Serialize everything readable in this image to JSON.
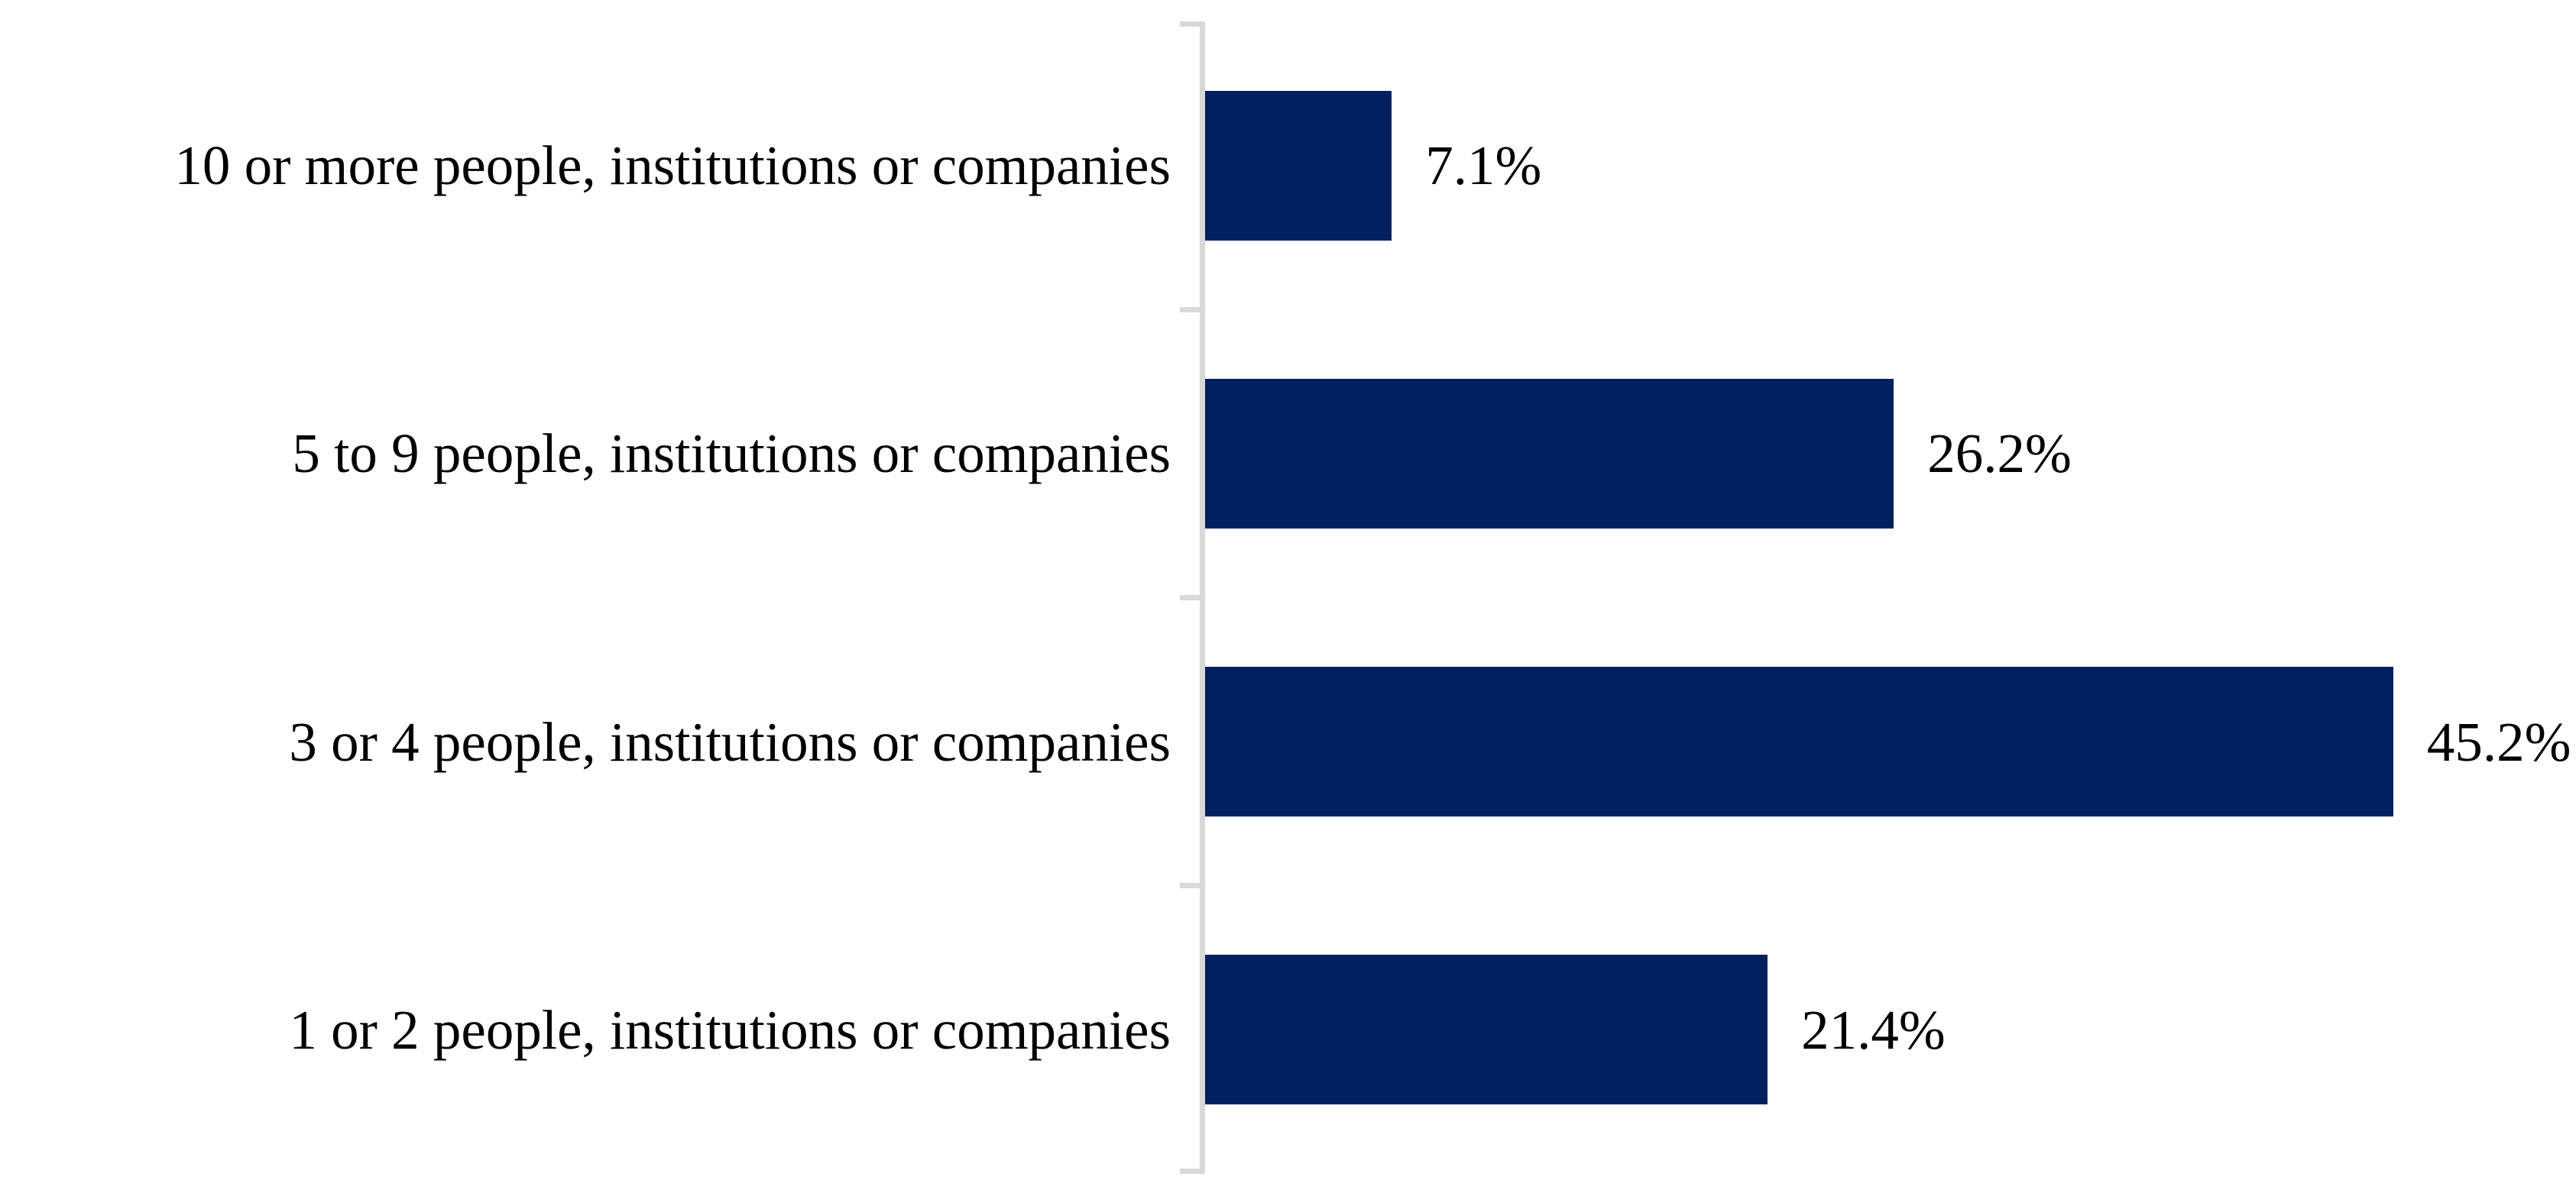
{
  "chart_data": {
    "type": "bar",
    "orientation": "horizontal",
    "title": "",
    "xlabel": "",
    "ylabel": "",
    "categories": [
      "10 or more people, institutions or companies",
      "5 to 9 people, institutions or companies",
      "3 or 4 people, institutions or companies",
      "1 or 2 people, institutions or companies"
    ],
    "values": [
      7.1,
      26.2,
      45.2,
      21.4
    ],
    "value_labels": [
      "7.1%",
      "26.2%",
      "45.2%",
      "21.4%"
    ],
    "xlim": [
      0,
      50
    ],
    "bar_color": "#002060",
    "axis_color": "#D9D9D9",
    "text_color": "#000000",
    "grid": false,
    "legend": false,
    "value_labels_position": "outside-end",
    "category_labels_position": "left"
  }
}
